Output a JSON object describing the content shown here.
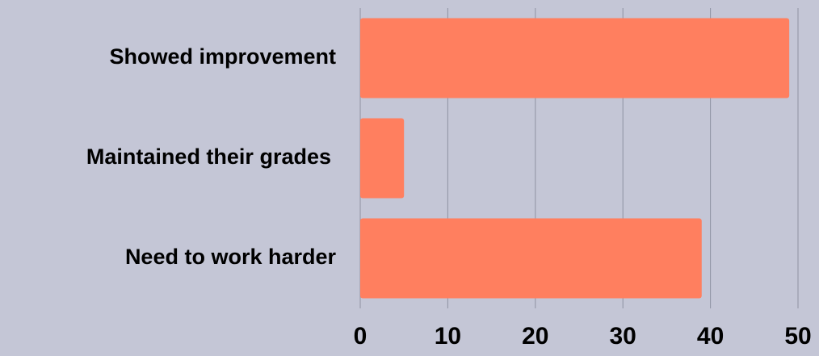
{
  "chart_data": {
    "type": "bar",
    "orientation": "horizontal",
    "categories": [
      "Showed improvement",
      "Maintained their grades",
      "Need to work harder"
    ],
    "values": [
      49,
      5,
      39
    ],
    "color": "#ff7f5f",
    "xlim": [
      0,
      50
    ],
    "xticks": [
      0,
      10,
      20,
      30,
      40,
      50
    ],
    "grid": true
  }
}
